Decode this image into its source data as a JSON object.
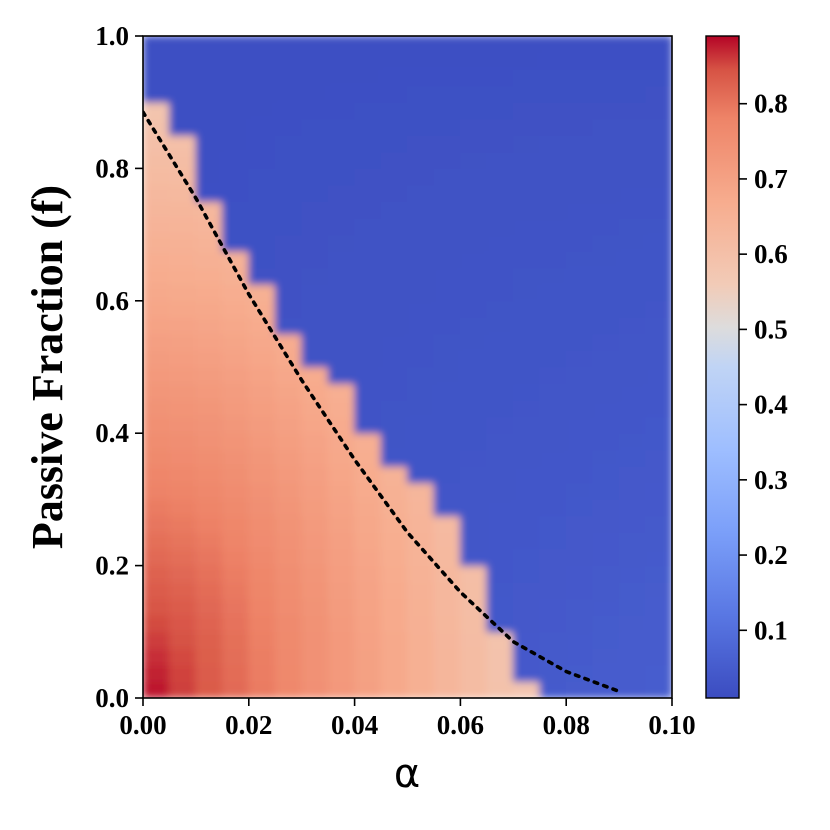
{
  "chart_data": {
    "type": "heatmap",
    "xlabel": "α",
    "ylabel": "Passive Fraction (f)",
    "xlim": [
      0.0,
      0.1
    ],
    "ylim": [
      0.0,
      1.0
    ],
    "x_ticks": [
      "0.00",
      "0.02",
      "0.04",
      "0.06",
      "0.08",
      "0.10"
    ],
    "y_ticks": [
      "0.0",
      "0.2",
      "0.4",
      "0.6",
      "0.8",
      "1.0"
    ],
    "colormap": "coolwarm",
    "colorbar": {
      "range": [
        0.01,
        0.89
      ],
      "ticks": [
        "0.1",
        "0.2",
        "0.3",
        "0.4",
        "0.5",
        "0.6",
        "0.7",
        "0.8"
      ],
      "placement": "right"
    },
    "value_model": {
      "high_region_value_at_origin": 0.89,
      "high_region_value_at_boundary": 0.58,
      "low_region_value": 0.02
    },
    "grid": {
      "alpha_steps": [
        0.0,
        0.005,
        0.01,
        0.015,
        0.02,
        0.025,
        0.03,
        0.035,
        0.04,
        0.045,
        0.05,
        0.055,
        0.06,
        0.065,
        0.07,
        0.075,
        0.08,
        0.085,
        0.09,
        0.095,
        0.1
      ],
      "f_boundary": [
        0.91,
        0.85,
        0.76,
        0.67,
        0.63,
        0.56,
        0.51,
        0.47,
        0.41,
        0.35,
        0.32,
        0.27,
        0.19,
        0.1,
        0.02,
        0.0,
        0.0,
        0.0,
        0.0,
        0.0
      ]
    },
    "critical_curve": {
      "style": "dotted",
      "color": "#000000",
      "alpha": [
        0.0,
        0.01,
        0.02,
        0.03,
        0.04,
        0.05,
        0.06,
        0.07,
        0.08,
        0.09
      ],
      "f": [
        0.885,
        0.755,
        0.61,
        0.48,
        0.36,
        0.25,
        0.16,
        0.085,
        0.04,
        0.01
      ]
    },
    "grid_lines": false,
    "legend": "none"
  }
}
